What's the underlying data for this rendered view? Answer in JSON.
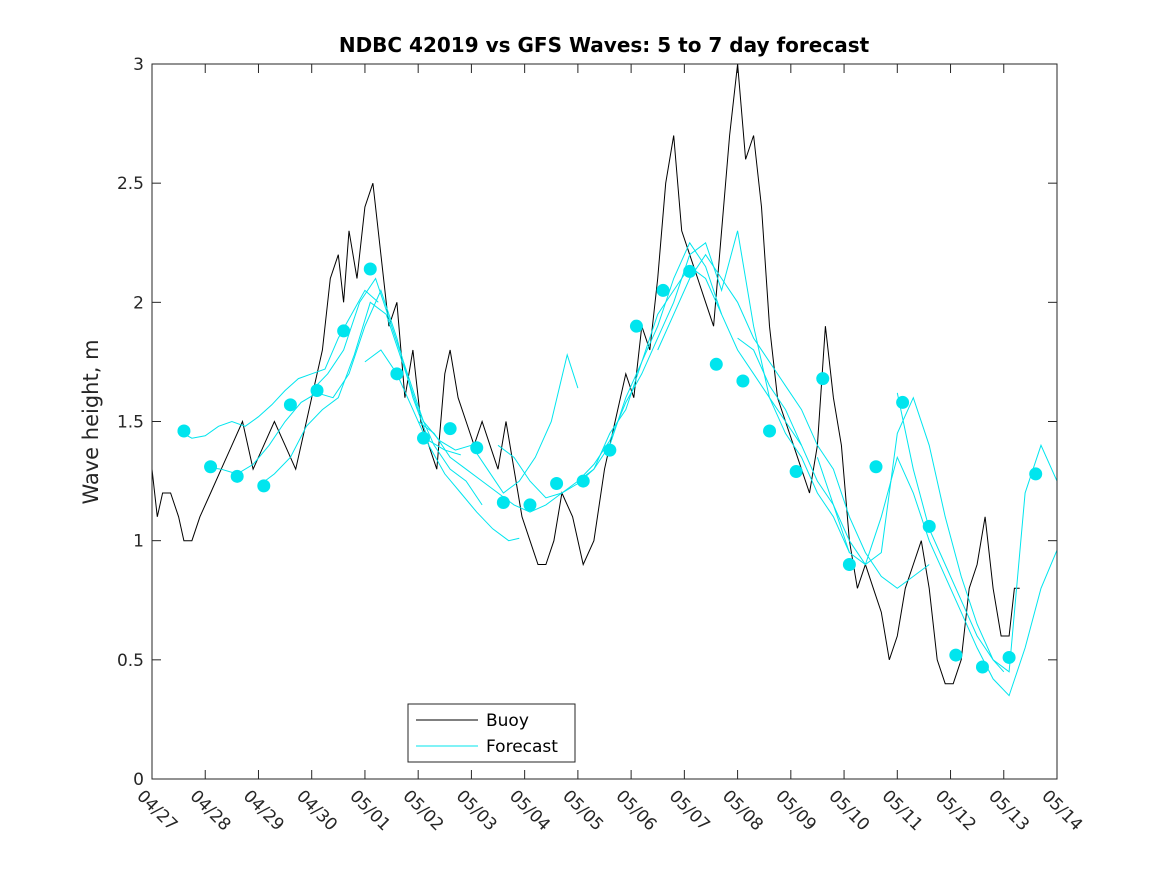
{
  "chart_data": {
    "type": "line",
    "title": "NDBC 42019 vs GFS Waves: 5 to 7 day forecast",
    "xlabel": "",
    "ylabel": "Wave height, m",
    "xlim": [
      0,
      17
    ],
    "ylim": [
      0,
      3
    ],
    "x_ticks": [
      {
        "v": 0,
        "label": "04/27"
      },
      {
        "v": 1,
        "label": "04/28"
      },
      {
        "v": 2,
        "label": "04/29"
      },
      {
        "v": 3,
        "label": "04/30"
      },
      {
        "v": 4,
        "label": "05/01"
      },
      {
        "v": 5,
        "label": "05/02"
      },
      {
        "v": 6,
        "label": "05/03"
      },
      {
        "v": 7,
        "label": "05/04"
      },
      {
        "v": 8,
        "label": "05/05"
      },
      {
        "v": 9,
        "label": "05/06"
      },
      {
        "v": 10,
        "label": "05/07"
      },
      {
        "v": 11,
        "label": "05/08"
      },
      {
        "v": 12,
        "label": "05/09"
      },
      {
        "v": 13,
        "label": "05/10"
      },
      {
        "v": 14,
        "label": "05/11"
      },
      {
        "v": 15,
        "label": "05/12"
      },
      {
        "v": 16,
        "label": "05/13"
      },
      {
        "v": 17,
        "label": "05/14"
      }
    ],
    "y_ticks": [
      {
        "v": 0,
        "label": "0"
      },
      {
        "v": 0.5,
        "label": "0.5"
      },
      {
        "v": 1,
        "label": "1"
      },
      {
        "v": 1.5,
        "label": "1.5"
      },
      {
        "v": 2,
        "label": "2"
      },
      {
        "v": 2.5,
        "label": "2.5"
      },
      {
        "v": 3,
        "label": "3"
      }
    ],
    "legend": {
      "placement": "bottom-center",
      "entries": [
        {
          "label": "Buoy",
          "color": "#000000"
        },
        {
          "label": "Forecast",
          "color": "#00e5ee"
        }
      ]
    },
    "series": [
      {
        "name": "Buoy",
        "color": "#000000",
        "x": [
          0,
          0.1,
          0.2,
          0.35,
          0.5,
          0.6,
          0.75,
          0.9,
          1.1,
          1.3,
          1.5,
          1.7,
          1.9,
          2.1,
          2.3,
          2.5,
          2.7,
          2.9,
          3.0,
          3.2,
          3.35,
          3.5,
          3.6,
          3.7,
          3.85,
          4.0,
          4.15,
          4.3,
          4.45,
          4.6,
          4.75,
          4.9,
          5.05,
          5.2,
          5.35,
          5.5,
          5.6,
          5.75,
          5.9,
          6.05,
          6.2,
          6.35,
          6.5,
          6.65,
          6.8,
          6.95,
          7.1,
          7.25,
          7.4,
          7.55,
          7.7,
          7.9,
          8.1,
          8.3,
          8.5,
          8.7,
          8.9,
          9.05,
          9.2,
          9.35,
          9.5,
          9.65,
          9.8,
          9.95,
          10.1,
          10.25,
          10.4,
          10.55,
          10.7,
          10.85,
          11.0,
          11.15,
          11.3,
          11.45,
          11.6,
          11.75,
          11.9,
          12.05,
          12.2,
          12.35,
          12.5,
          12.65,
          12.8,
          12.95,
          13.1,
          13.25,
          13.4,
          13.55,
          13.7,
          13.85,
          14.0,
          14.15,
          14.3,
          14.45,
          14.6,
          14.75,
          14.9,
          15.05,
          15.2,
          15.35,
          15.5,
          15.65,
          15.8,
          15.95,
          16.1,
          16.2,
          16.3
        ],
        "values": [
          1.3,
          1.1,
          1.2,
          1.2,
          1.1,
          1.0,
          1.0,
          1.1,
          1.2,
          1.3,
          1.4,
          1.5,
          1.3,
          1.4,
          1.5,
          1.4,
          1.3,
          1.5,
          1.6,
          1.8,
          2.1,
          2.2,
          2.0,
          2.3,
          2.1,
          2.4,
          2.5,
          2.2,
          1.9,
          2.0,
          1.6,
          1.8,
          1.5,
          1.4,
          1.3,
          1.7,
          1.8,
          1.6,
          1.5,
          1.4,
          1.5,
          1.4,
          1.3,
          1.5,
          1.3,
          1.1,
          1.0,
          0.9,
          0.9,
          1.0,
          1.2,
          1.1,
          0.9,
          1.0,
          1.3,
          1.5,
          1.7,
          1.6,
          1.9,
          1.8,
          2.1,
          2.5,
          2.7,
          2.3,
          2.2,
          2.1,
          2.0,
          1.9,
          2.3,
          2.7,
          3.0,
          2.6,
          2.7,
          2.4,
          1.9,
          1.6,
          1.5,
          1.4,
          1.3,
          1.2,
          1.4,
          1.9,
          1.6,
          1.4,
          1.0,
          0.8,
          0.9,
          0.8,
          0.7,
          0.5,
          0.6,
          0.8,
          0.9,
          1.0,
          0.8,
          0.5,
          0.4,
          0.4,
          0.5,
          0.8,
          0.9,
          1.1,
          0.8,
          0.6,
          0.6,
          0.8,
          0.8
        ]
      },
      {
        "name": "Forecast",
        "color": "#00e5ee",
        "x": [
          0.5,
          0.75,
          1.0,
          1.25,
          1.5,
          1.75,
          2.0,
          2.25,
          2.5,
          2.75,
          3.0,
          3.25,
          3.5,
          3.75,
          4.0,
          4.25
        ],
        "values": [
          1.46,
          1.43,
          1.44,
          1.48,
          1.5,
          1.48,
          1.52,
          1.57,
          1.63,
          1.68,
          1.7,
          1.72,
          1.85,
          1.95,
          2.05,
          2.0
        ]
      },
      {
        "name": "Forecast",
        "color": "#00e5ee",
        "x": [
          1.0,
          1.3,
          1.6,
          1.9,
          2.2,
          2.5,
          2.8,
          3.1,
          3.4,
          3.7,
          4.0,
          4.3,
          4.6,
          4.9,
          5.2,
          5.5,
          5.8
        ],
        "values": [
          1.31,
          1.3,
          1.28,
          1.32,
          1.4,
          1.5,
          1.58,
          1.62,
          1.6,
          1.7,
          1.9,
          2.05,
          1.85,
          1.6,
          1.42,
          1.38,
          1.36
        ]
      },
      {
        "name": "Forecast",
        "color": "#00e5ee",
        "x": [
          2.0,
          2.3,
          2.6,
          2.9,
          3.2,
          3.5,
          3.8,
          4.1,
          4.4,
          4.7,
          5.0,
          5.3,
          5.6,
          5.9,
          6.2
        ],
        "values": [
          1.23,
          1.28,
          1.35,
          1.48,
          1.55,
          1.6,
          1.78,
          2.0,
          1.95,
          1.75,
          1.55,
          1.4,
          1.3,
          1.25,
          1.15
        ]
      },
      {
        "name": "Forecast",
        "color": "#00e5ee",
        "x": [
          3.0,
          3.3,
          3.6,
          3.9,
          4.2,
          4.5,
          4.8,
          5.1,
          5.4,
          5.7,
          6.0,
          6.3,
          6.6,
          6.9,
          7.2,
          7.5,
          7.8,
          8.0
        ],
        "values": [
          1.63,
          1.7,
          1.8,
          2.0,
          2.1,
          1.9,
          1.7,
          1.5,
          1.42,
          1.38,
          1.4,
          1.3,
          1.2,
          1.25,
          1.35,
          1.5,
          1.78,
          1.64
        ]
      },
      {
        "name": "Forecast",
        "color": "#00e5ee",
        "x": [
          4.0,
          4.3,
          4.6,
          4.9,
          5.2,
          5.5,
          5.8,
          6.1,
          6.4,
          6.7,
          6.9
        ],
        "values": [
          1.75,
          1.8,
          1.7,
          1.55,
          1.4,
          1.28,
          1.2,
          1.12,
          1.05,
          1.0,
          1.01
        ]
      },
      {
        "name": "Forecast",
        "color": "#00e5ee",
        "x": [
          5.0,
          5.3,
          5.6,
          5.9,
          6.2,
          6.5,
          6.8,
          7.1,
          7.4,
          7.7,
          8.0,
          8.3,
          8.6,
          8.9,
          9.2,
          9.5,
          9.8,
          10.1,
          10.4,
          10.7
        ],
        "values": [
          1.5,
          1.45,
          1.35,
          1.3,
          1.25,
          1.2,
          1.15,
          1.12,
          1.15,
          1.2,
          1.25,
          1.3,
          1.4,
          1.6,
          1.75,
          1.9,
          2.1,
          2.25,
          2.15,
          1.95
        ]
      },
      {
        "name": "Forecast",
        "color": "#00e5ee",
        "x": [
          6.5,
          6.8,
          7.1,
          7.4,
          7.7,
          8.0,
          8.3,
          8.6,
          8.9,
          9.2,
          9.5,
          9.8,
          10.1,
          10.4,
          10.7,
          11.0,
          11.3,
          11.6,
          11.9,
          12.2
        ],
        "values": [
          1.4,
          1.35,
          1.25,
          1.18,
          1.2,
          1.24,
          1.3,
          1.45,
          1.55,
          1.75,
          1.95,
          2.05,
          2.15,
          2.1,
          1.95,
          1.8,
          1.7,
          1.6,
          1.5,
          1.4
        ]
      },
      {
        "name": "Forecast",
        "color": "#00e5ee",
        "x": [
          8.0,
          8.3,
          8.6,
          8.9,
          9.2,
          9.5,
          9.8,
          10.1,
          10.4,
          10.7,
          11.0,
          11.3,
          11.6,
          11.9,
          12.2,
          12.5,
          12.8,
          13.1
        ],
        "values": [
          1.25,
          1.32,
          1.42,
          1.58,
          1.7,
          1.85,
          2.0,
          2.2,
          2.25,
          2.05,
          2.3,
          1.9,
          1.6,
          1.45,
          1.35,
          1.2,
          1.1,
          0.95
        ]
      },
      {
        "name": "Forecast",
        "color": "#00e5ee",
        "x": [
          9.5,
          9.8,
          10.1,
          10.4,
          10.7,
          11.0,
          11.3,
          11.6,
          11.9,
          12.2,
          12.5,
          12.8,
          13.1,
          13.4,
          13.7,
          14.0,
          14.3,
          14.6
        ],
        "values": [
          1.8,
          1.95,
          2.1,
          2.2,
          2.1,
          2.0,
          1.85,
          1.75,
          1.65,
          1.55,
          1.4,
          1.3,
          1.1,
          0.95,
          0.85,
          0.8,
          0.85,
          0.9
        ]
      },
      {
        "name": "Forecast",
        "color": "#00e5ee",
        "x": [
          11.0,
          11.3,
          11.6,
          11.9,
          12.2,
          12.5,
          12.8,
          13.1,
          13.4,
          13.7,
          14.0,
          14.3,
          14.6,
          14.9,
          15.2,
          15.5,
          15.8,
          16.0
        ],
        "values": [
          1.85,
          1.8,
          1.65,
          1.55,
          1.4,
          1.25,
          1.15,
          1.0,
          0.9,
          0.95,
          1.45,
          1.6,
          1.4,
          1.1,
          0.85,
          0.65,
          0.5,
          0.45
        ]
      },
      {
        "name": "Forecast",
        "color": "#00e5ee",
        "x": [
          12.5,
          12.8,
          13.1,
          13.4,
          13.7,
          14.0,
          14.3,
          14.6,
          14.9,
          15.2,
          15.5,
          15.8,
          16.1,
          16.4,
          16.7,
          17.0
        ],
        "values": [
          1.35,
          1.15,
          0.95,
          0.9,
          1.1,
          1.35,
          1.2,
          1.0,
          0.85,
          0.7,
          0.55,
          0.42,
          0.35,
          0.55,
          0.8,
          0.96
        ]
      },
      {
        "name": "Forecast",
        "color": "#00e5ee",
        "x": [
          14.0,
          14.3,
          14.6,
          14.9,
          15.2,
          15.5,
          15.8,
          16.1,
          16.4,
          16.7,
          17.0
        ],
        "values": [
          1.62,
          1.3,
          1.05,
          0.9,
          0.75,
          0.6,
          0.5,
          0.45,
          1.2,
          1.4,
          1.25
        ]
      }
    ],
    "markers": {
      "name": "Forecast",
      "color": "#00e5ee",
      "x": [
        0.6,
        1.1,
        1.6,
        2.1,
        2.6,
        3.1,
        3.6,
        4.1,
        4.6,
        5.1,
        5.6,
        6.1,
        6.6,
        7.1,
        7.6,
        8.1,
        8.6,
        9.1,
        9.6,
        10.1,
        10.6,
        11.1,
        11.6,
        12.1,
        12.6,
        13.1,
        13.6,
        14.1,
        14.6,
        15.1,
        15.6,
        16.1,
        16.6
      ],
      "values": [
        1.46,
        1.31,
        1.27,
        1.23,
        1.57,
        1.63,
        1.88,
        2.14,
        1.7,
        1.43,
        1.47,
        1.39,
        1.16,
        1.15,
        1.24,
        1.25,
        1.38,
        1.9,
        2.05,
        2.13,
        1.74,
        1.67,
        1.46,
        1.29,
        1.68,
        0.9,
        1.31,
        1.58,
        1.06,
        0.52,
        0.47,
        0.51,
        1.28
      ]
    }
  }
}
